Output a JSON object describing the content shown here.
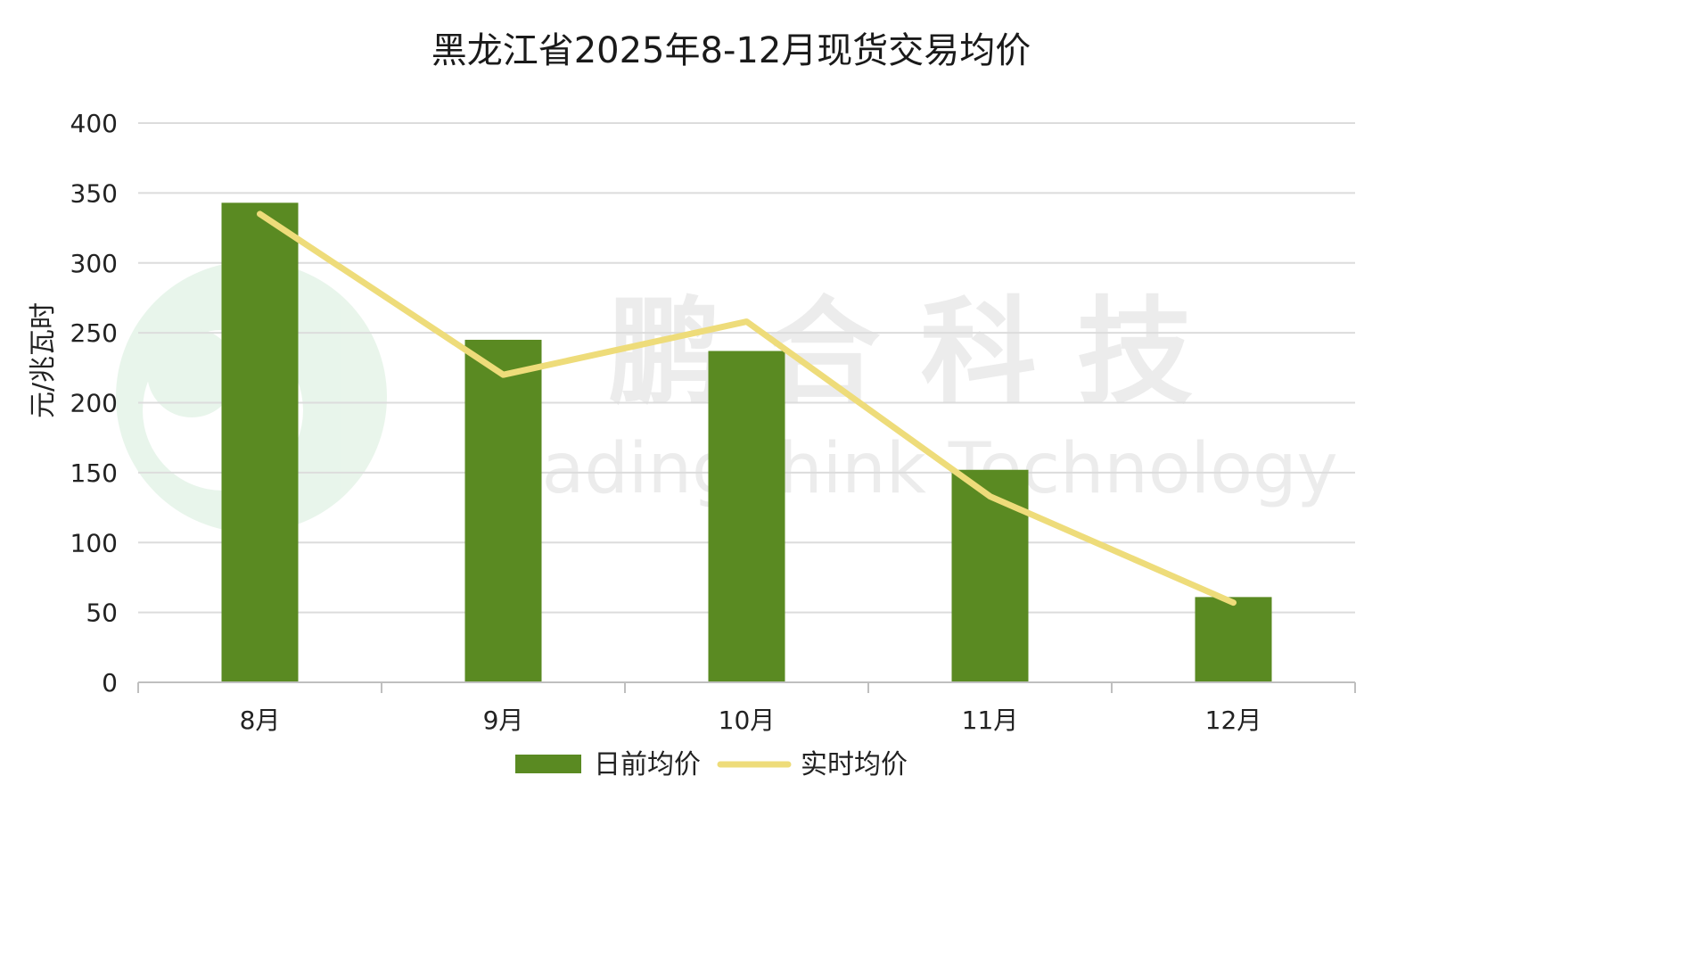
{
  "chart_data": {
    "type": "bar",
    "title": "黑龙江省2025年8-12月现货交易均价",
    "xlabel": "",
    "ylabel": "元/兆瓦时",
    "categories": [
      "8月",
      "9月",
      "10月",
      "11月",
      "12月"
    ],
    "ylim": [
      0,
      400
    ],
    "yticks": [
      0,
      50,
      100,
      150,
      200,
      250,
      300,
      350,
      400
    ],
    "grid": true,
    "legend_position": "bottom",
    "series": [
      {
        "name": "日前均价",
        "type": "bar",
        "color": "#5a8a22",
        "values": [
          343,
          245,
          237,
          152,
          61
        ]
      },
      {
        "name": "实时均价",
        "type": "line",
        "color": "#eedc7a",
        "values": [
          335,
          220,
          258,
          133,
          57
        ]
      }
    ]
  },
  "watermark": {
    "text_cn": "鹏 合 科 技",
    "text_en": "TradingThink Technology"
  }
}
